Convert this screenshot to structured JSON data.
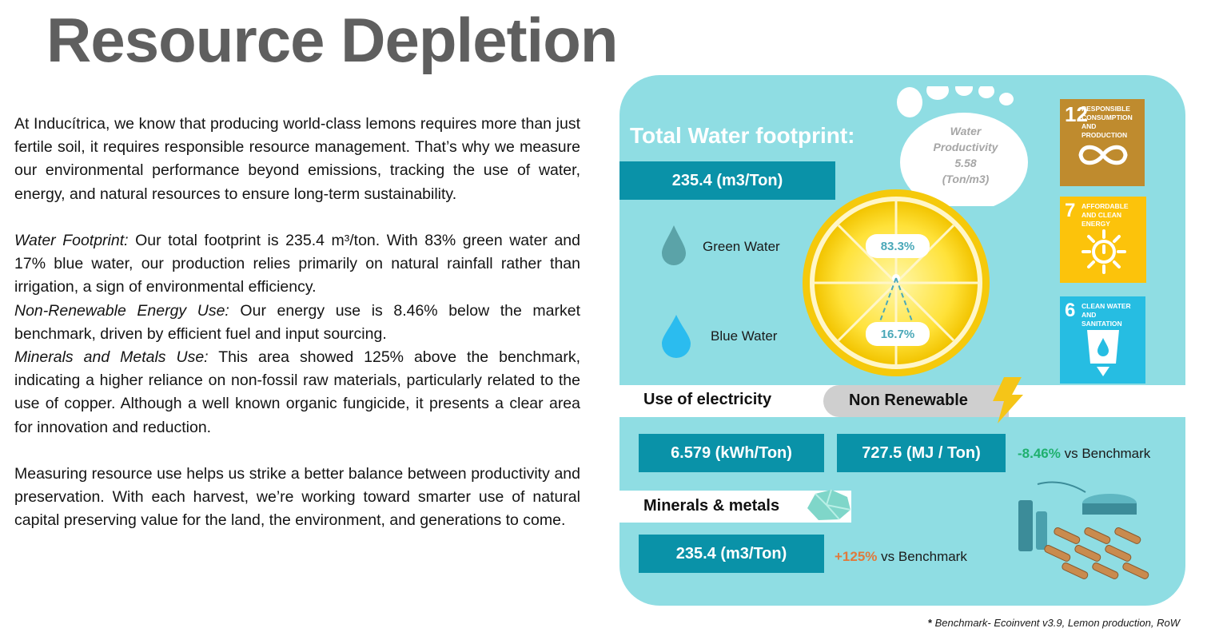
{
  "title": "Resource Depletion",
  "intro": "At Inducítrica, we know that producing world-class lemons requires more than just fertile soil, it requires responsible resource management. That’s why we measure our environmental performance beyond emissions, tracking the use of water, energy, and natural resources to ensure long-term sustainability.",
  "water_para": {
    "label": "Water Footprint:",
    "text": " Our total footprint is 235.4 m³/ton. With 83% green water and 17% blue water, our production relies primarily on natural rainfall rather than irrigation, a sign of environmental efficiency."
  },
  "energy_para": {
    "label": "Non-Renewable Energy Use:",
    "text": " Our energy use is 8.46% below the market benchmark, driven by efficient fuel and input sourcing."
  },
  "minerals_para": {
    "label": "Minerals and Metals Use:",
    "text": " This area showed 125% above the benchmark, indicating a higher reliance on non-fossil raw materials, particularly related to the use of copper. Although a well known organic fungicide, it presents a clear area for innovation and reduction."
  },
  "closing": "Measuring resource use helps us strike a better balance between productivity and preservation. With each harvest, we’re working toward smarter use of natural capital preserving value for the land, the environment, and generations to come.",
  "infographic": {
    "water_title": "Total Water footprint:",
    "water_value": "235.4 (m3/Ton)",
    "productivity_label_1": "Water",
    "productivity_label_2": "Productivity",
    "productivity_value": "5.58",
    "productivity_unit": "(Ton/m3)",
    "green_label": "Green Water",
    "green_pct": "83.3%",
    "blue_label": "Blue Water",
    "blue_pct": "16.7%",
    "electricity_label": "Use of electricity",
    "nonrenewable_label": "Non Renewable",
    "electricity_value": "6.579 (kWh/Ton)",
    "nonrenewable_value": "727.5 (MJ / Ton)",
    "nonrenewable_delta": "-8.46%",
    "vs_benchmark": " vs Benchmark",
    "minerals_label": "Minerals & metals",
    "minerals_value": "235.4 (m3/Ton)",
    "minerals_delta": "+125%",
    "colors": {
      "panel": "#8fdde3",
      "box": "#0a92a8",
      "sdg12": "#bf8b2e",
      "sdg7": "#fcc30b",
      "sdg6": "#26bde2"
    }
  },
  "sdgs": [
    {
      "num": "12",
      "text": "Responsible consumption and production",
      "icon": "infinity-icon"
    },
    {
      "num": "7",
      "text": "Affordable and clean energy",
      "icon": "power-sun-icon"
    },
    {
      "num": "6",
      "text": "Clean water and sanitation",
      "icon": "water-glass-icon"
    }
  ],
  "footnote": {
    "star": "*",
    "text": " Benchmark- Ecoinvent v3.9, Lemon production, RoW"
  }
}
